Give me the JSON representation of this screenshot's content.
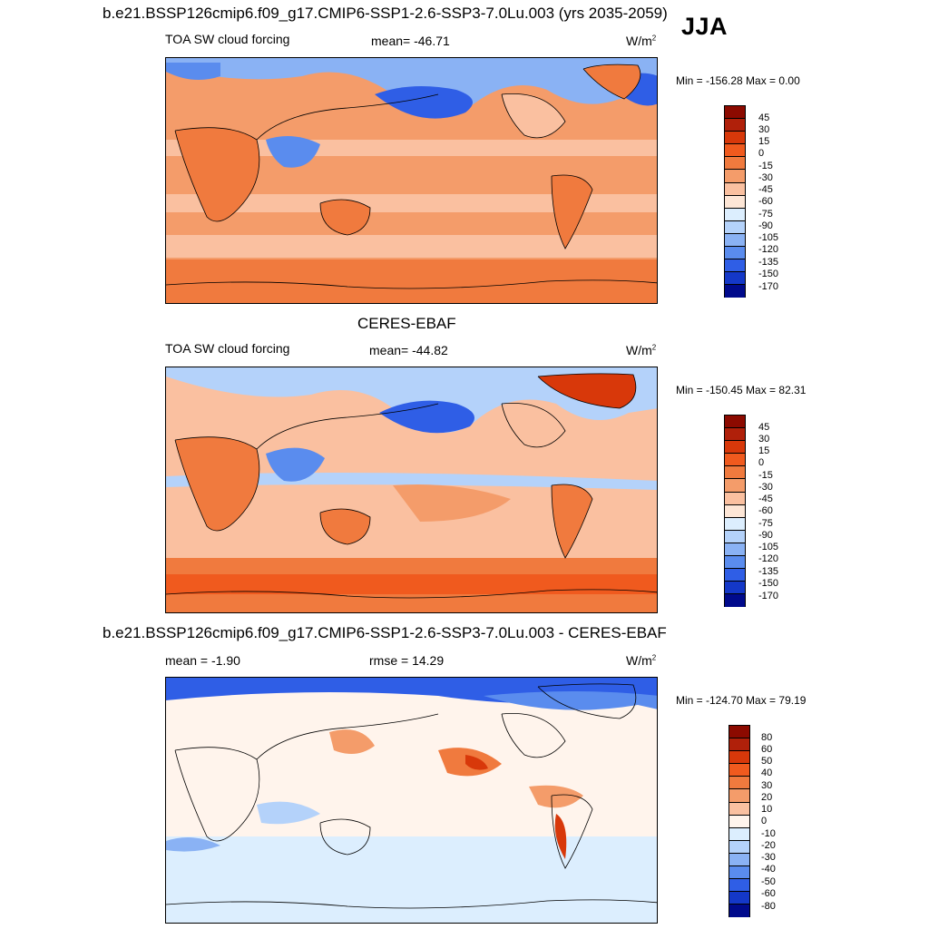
{
  "season": "JJA",
  "panels": [
    {
      "title": "b.e21.BSSP126cmip6.f09_g17.CMIP6-SSP1-2.6-SSP3-7.0Lu.003 (yrs 2035-2059)",
      "left_label": "TOA SW cloud forcing",
      "center_label": "mean= -46.71",
      "units": "W/m",
      "units_sup": "2",
      "minmax": "Min = -156.28 Max =   0.00",
      "levels": [
        "45",
        "30",
        "15",
        "0",
        "-15",
        "-30",
        "-45",
        "-60",
        "-75",
        "-90",
        "-105",
        "-120",
        "-135",
        "-150",
        "-170"
      ]
    },
    {
      "title": "CERES-EBAF",
      "left_label": "TOA SW cloud forcing",
      "center_label": "mean= -44.82",
      "units": "W/m",
      "units_sup": "2",
      "minmax": "Min = -150.45 Max =  82.31",
      "levels": [
        "45",
        "30",
        "15",
        "0",
        "-15",
        "-30",
        "-45",
        "-60",
        "-75",
        "-90",
        "-105",
        "-120",
        "-135",
        "-150",
        "-170"
      ]
    },
    {
      "title": "b.e21.BSSP126cmip6.f09_g17.CMIP6-SSP1-2.6-SSP3-7.0Lu.003 - CERES-EBAF",
      "left_label": "mean =  -1.90",
      "center_label": "rmse =  14.29",
      "units": "W/m",
      "units_sup": "2",
      "minmax": "Min = -124.70 Max =  79.19",
      "levels": [
        "80",
        "60",
        "50",
        "40",
        "30",
        "20",
        "10",
        "0",
        "-10",
        "-20",
        "-30",
        "-40",
        "-50",
        "-60",
        "-80"
      ]
    }
  ],
  "colors": {
    "cb_abs": [
      "#8c0a00",
      "#b0200a",
      "#d8380a",
      "#f05a1e",
      "#f07a3e",
      "#f49c6a",
      "#fac0a0",
      "#fde6d6",
      "#dceefe",
      "#b4d2fa",
      "#8ab2f4",
      "#5a8cee",
      "#2f5ee6",
      "#1438c8",
      "#000a8c"
    ],
    "cb_diff": [
      "#8c0a00",
      "#b0200a",
      "#d8380a",
      "#f05a1e",
      "#f07a3e",
      "#f49c6a",
      "#fac0a0",
      "#fff4ec",
      "#dceefe",
      "#b4d2fa",
      "#8ab2f4",
      "#5a8cee",
      "#2f5ee6",
      "#1438c8",
      "#000a8c"
    ]
  }
}
